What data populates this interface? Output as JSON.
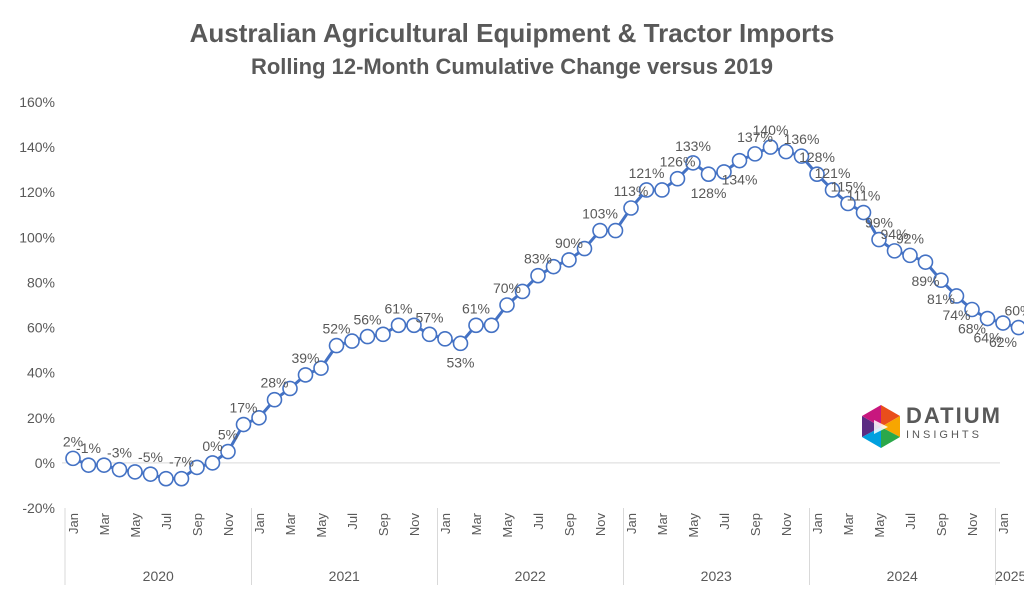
{
  "logo": {
    "word": "DATIUM",
    "sub": "INSIGHTS"
  },
  "colors": {
    "line": "#4472C4",
    "axis": "#D9D9D9",
    "text": "#595959"
  },
  "chart_data": {
    "type": "line",
    "title": "Australian Agricultural Equipment & Tractor Imports",
    "subtitle": "Rolling 12-Month Cumulative Change versus 2019",
    "ylim": [
      -0.2,
      1.6
    ],
    "yticks": [
      {
        "v": 1.6,
        "label": "160%"
      },
      {
        "v": 1.4,
        "label": "140%"
      },
      {
        "v": 1.2,
        "label": "120%"
      },
      {
        "v": 1.0,
        "label": "100%"
      },
      {
        "v": 0.8,
        "label": "80%"
      },
      {
        "v": 0.6,
        "label": "60%"
      },
      {
        "v": 0.4,
        "label": "40%"
      },
      {
        "v": 0.2,
        "label": "20%"
      },
      {
        "v": 0.0,
        "label": "0%"
      },
      {
        "v": -0.2,
        "label": "-20%"
      }
    ],
    "grid": false,
    "months": [
      "Jan",
      "Feb",
      "Mar",
      "Apr",
      "May",
      "Jun",
      "Jul",
      "Aug",
      "Sep",
      "Oct",
      "Nov",
      "Dec",
      "Jan",
      "Feb",
      "Mar",
      "Apr",
      "May",
      "Jun",
      "Jul",
      "Aug",
      "Sep",
      "Oct",
      "Nov",
      "Dec",
      "Jan",
      "Feb",
      "Mar",
      "Apr",
      "May",
      "Jun",
      "Jul",
      "Aug",
      "Sep",
      "Oct",
      "Nov",
      "Dec",
      "Jan",
      "Feb",
      "Mar",
      "Apr",
      "May",
      "Jun",
      "Jul",
      "Aug",
      "Sep",
      "Oct",
      "Nov",
      "Dec",
      "Jan",
      "Feb",
      "Mar",
      "Apr",
      "May",
      "Jun",
      "Jul",
      "Aug",
      "Sep",
      "Oct",
      "Nov",
      "Dec",
      "Jan",
      "Feb"
    ],
    "month_tick_labels": [
      "Jan",
      "Mar",
      "May",
      "Jul",
      "Sep",
      "Nov"
    ],
    "years": [
      {
        "label": "2020",
        "start": 0,
        "end": 11
      },
      {
        "label": "2021",
        "start": 12,
        "end": 23
      },
      {
        "label": "2022",
        "start": 24,
        "end": 35
      },
      {
        "label": "2023",
        "start": 36,
        "end": 47
      },
      {
        "label": "2024",
        "start": 48,
        "end": 59
      },
      {
        "label": "2025",
        "start": 60,
        "end": 61
      }
    ],
    "series": [
      {
        "values": [
          0.02,
          -0.01,
          -0.01,
          -0.03,
          -0.04,
          -0.05,
          -0.07,
          -0.07,
          -0.02,
          0.0,
          0.05,
          0.17,
          0.2,
          0.28,
          0.33,
          0.39,
          0.42,
          0.52,
          0.54,
          0.56,
          0.57,
          0.61,
          0.61,
          0.57,
          0.55,
          0.53,
          0.61,
          0.61,
          0.7,
          0.76,
          0.83,
          0.87,
          0.9,
          0.95,
          1.03,
          1.03,
          1.13,
          1.21,
          1.21,
          1.26,
          1.33,
          1.28,
          1.29,
          1.34,
          1.37,
          1.4,
          1.38,
          1.36,
          1.28,
          1.21,
          1.15,
          1.11,
          0.99,
          0.94,
          0.92,
          0.89,
          0.81,
          0.74,
          0.68,
          0.64,
          0.62,
          0.6
        ]
      }
    ],
    "data_labels": [
      {
        "i": 0,
        "text": "2%"
      },
      {
        "i": 1,
        "text": "-1%"
      },
      {
        "i": 3,
        "text": "-3%"
      },
      {
        "i": 5,
        "text": "-5%"
      },
      {
        "i": 7,
        "text": "-7%"
      },
      {
        "i": 9,
        "text": "0%"
      },
      {
        "i": 10,
        "text": "5%"
      },
      {
        "i": 11,
        "text": "17%"
      },
      {
        "i": 13,
        "text": "28%"
      },
      {
        "i": 15,
        "text": "39%"
      },
      {
        "i": 17,
        "text": "52%"
      },
      {
        "i": 19,
        "text": "56%"
      },
      {
        "i": 21,
        "text": "61%"
      },
      {
        "i": 23,
        "text": "57%"
      },
      {
        "i": 25,
        "text": "53%"
      },
      {
        "i": 26,
        "text": "61%"
      },
      {
        "i": 28,
        "text": "70%"
      },
      {
        "i": 30,
        "text": "83%"
      },
      {
        "i": 32,
        "text": "90%"
      },
      {
        "i": 34,
        "text": "103%"
      },
      {
        "i": 36,
        "text": "113%"
      },
      {
        "i": 37,
        "text": "121%"
      },
      {
        "i": 39,
        "text": "126%"
      },
      {
        "i": 40,
        "text": "133%"
      },
      {
        "i": 41,
        "text": "128%"
      },
      {
        "i": 43,
        "text": "134%"
      },
      {
        "i": 44,
        "text": "137%"
      },
      {
        "i": 45,
        "text": "140%"
      },
      {
        "i": 47,
        "text": "136%"
      },
      {
        "i": 48,
        "text": "128%"
      },
      {
        "i": 49,
        "text": "121%"
      },
      {
        "i": 50,
        "text": "115%"
      },
      {
        "i": 51,
        "text": "111%"
      },
      {
        "i": 52,
        "text": "99%"
      },
      {
        "i": 53,
        "text": "94%"
      },
      {
        "i": 54,
        "text": "92%"
      },
      {
        "i": 55,
        "text": "89%"
      },
      {
        "i": 56,
        "text": "81%"
      },
      {
        "i": 57,
        "text": "74%"
      },
      {
        "i": 58,
        "text": "68%"
      },
      {
        "i": 59,
        "text": "64%"
      },
      {
        "i": 60,
        "text": "62%"
      },
      {
        "i": 61,
        "text": "60%"
      }
    ]
  }
}
